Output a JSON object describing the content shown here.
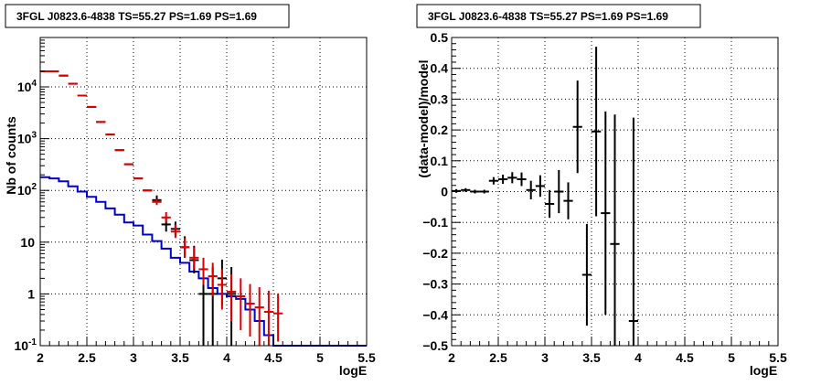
{
  "chart_data": [
    {
      "type": "scatter",
      "title": "3FGL J0823.6-4838 TS=55.27 PS=1.69 PS=1.69",
      "xlabel": "logE",
      "ylabel": "Nb of counts",
      "xlim": [
        2,
        5.5
      ],
      "ylim": [
        0.1,
        90000
      ],
      "yscale": "log",
      "grid": true,
      "x_ticks": [
        "2",
        "2.5",
        "3",
        "3.5",
        "4",
        "4.5",
        "5",
        "5.5"
      ],
      "y_ticks": [
        "10^-1",
        "1",
        "10",
        "10^2",
        "10^3",
        "10^4"
      ],
      "series": [
        {
          "color": "#000000",
          "style": "crosses",
          "x": [
            2.05,
            2.15,
            2.25,
            2.35,
            2.45,
            2.55,
            2.65,
            2.75,
            2.85,
            2.95,
            3.05,
            3.15,
            3.25,
            3.35,
            3.45,
            3.55,
            3.65,
            3.75,
            3.85,
            3.95,
            4.05
          ],
          "y": [
            20000,
            20000,
            16500,
            11500,
            6800,
            4100,
            2100,
            1200,
            600,
            320,
            170,
            100,
            65,
            22,
            18,
            8,
            4.5,
            1.0,
            1.0,
            2.0,
            1.0
          ],
          "err_low": [
            0,
            0,
            0,
            0,
            0,
            0,
            0,
            0,
            0,
            0,
            0,
            0,
            12,
            6,
            5,
            3,
            2,
            0.9,
            0.9,
            1.4,
            0.9
          ],
          "err_high": [
            0,
            0,
            0,
            0,
            0,
            0,
            0,
            0,
            0,
            0,
            0,
            0,
            15,
            9,
            7,
            5,
            4,
            2.3,
            2.3,
            2.6,
            2.3
          ]
        },
        {
          "color": "#dd0000",
          "style": "crosses",
          "x": [
            2.05,
            2.15,
            2.25,
            2.35,
            2.45,
            2.55,
            2.65,
            2.75,
            2.85,
            2.95,
            3.05,
            3.15,
            3.25,
            3.35,
            3.45,
            3.55,
            3.65,
            3.75,
            3.85,
            3.95,
            4.05,
            4.15,
            4.25,
            4.35,
            4.45,
            4.55
          ],
          "y": [
            20000,
            20000,
            16500,
            11500,
            6800,
            4100,
            2100,
            1200,
            600,
            320,
            170,
            100,
            60,
            30,
            16,
            8,
            5,
            3,
            2.2,
            1.5,
            1.1,
            0.9,
            0.65,
            0.55,
            0.45,
            0.42
          ],
          "err_low": [
            0,
            0,
            0,
            0,
            0,
            0,
            0,
            0,
            0,
            0,
            0,
            0,
            8,
            6,
            4,
            3,
            2,
            1.5,
            1.3,
            1.0,
            0.8,
            0.7,
            0.5,
            0.45,
            0.35,
            0.3
          ],
          "err_high": [
            0,
            0,
            0,
            0,
            0,
            0,
            0,
            0,
            0,
            0,
            0,
            0,
            8,
            8,
            6,
            4,
            3,
            2.0,
            1.8,
            1.5,
            1.3,
            1.1,
            0.9,
            0.8,
            0.7,
            0.6
          ]
        },
        {
          "color": "#0000cc",
          "style": "step",
          "x": [
            2.05,
            2.15,
            2.25,
            2.35,
            2.45,
            2.55,
            2.65,
            2.75,
            2.85,
            2.95,
            3.05,
            3.15,
            3.25,
            3.35,
            3.45,
            3.55,
            3.65,
            3.75,
            3.85,
            3.95,
            4.05,
            4.15,
            4.25,
            4.35,
            4.45,
            4.55,
            4.65,
            4.75,
            4.85,
            4.95,
            5.05,
            5.15,
            5.25,
            5.35,
            5.45
          ],
          "y": [
            180,
            170,
            150,
            120,
            95,
            75,
            60,
            45,
            34,
            24,
            21,
            14,
            10.5,
            7.5,
            5.0,
            4.0,
            2.7,
            2.0,
            1.3,
            1.0,
            0.9,
            0.8,
            0.5,
            0.3,
            0.16,
            0.1,
            0.1,
            0.1,
            0.1,
            0.1,
            0.1,
            0.1,
            0.1,
            0.1,
            0.1
          ]
        }
      ]
    },
    {
      "type": "scatter",
      "title": "3FGL J0823.6-4838 TS=55.27 PS=1.69 PS=1.69",
      "xlabel": "logE",
      "ylabel": "(data-model)/model",
      "xlim": [
        2,
        5.5
      ],
      "ylim": [
        -0.5,
        0.5
      ],
      "grid": true,
      "x_ticks": [
        "2",
        "2.5",
        "3",
        "3.5",
        "4",
        "4.5",
        "5",
        "5.5"
      ],
      "y_ticks": [
        "−0.5",
        "−0.4",
        "−0.3",
        "−0.2",
        "−0.1",
        "0",
        "0.1",
        "0.2",
        "0.3",
        "0.4",
        "0.5"
      ],
      "series": [
        {
          "color": "#000000",
          "style": "crosses",
          "x": [
            2.05,
            2.15,
            2.25,
            2.35,
            2.45,
            2.55,
            2.65,
            2.75,
            2.85,
            2.95,
            3.05,
            3.15,
            3.25,
            3.35,
            3.45,
            3.55,
            3.65,
            3.75,
            3.95
          ],
          "y": [
            0.002,
            0.005,
            0.0,
            0.0,
            0.035,
            0.04,
            0.045,
            0.04,
            0.005,
            0.018,
            -0.04,
            0.0,
            -0.03,
            0.21,
            -0.27,
            0.195,
            -0.07,
            -0.17,
            -0.42
          ],
          "err": [
            0.006,
            0.006,
            0.006,
            0.006,
            0.012,
            0.015,
            0.018,
            0.022,
            0.03,
            0.035,
            0.045,
            0.07,
            0.06,
            0.15,
            0.165,
            0.275,
            0.33,
            0.42,
            0.66
          ]
        }
      ]
    }
  ]
}
